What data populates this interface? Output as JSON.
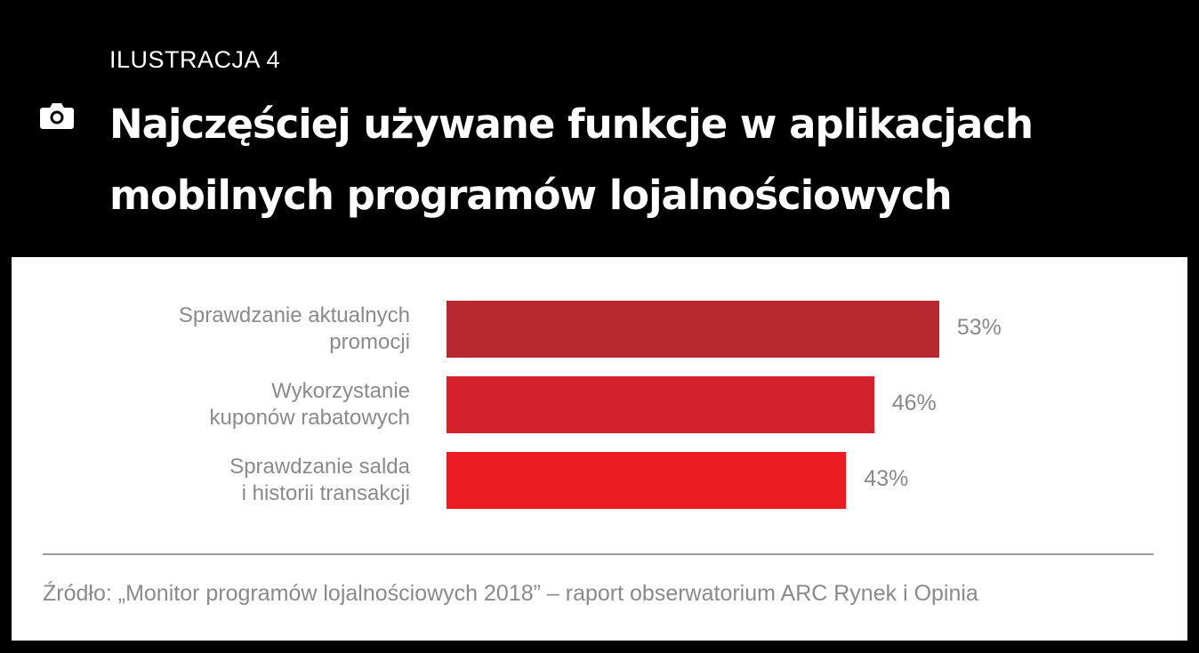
{
  "header": {
    "kicker": "ILUSTRACJA 4",
    "title": "Najczęściej używane funkcje w aplikacjach mobilnych programów lojalnościowych",
    "icon": "camera-icon"
  },
  "chart_data": {
    "type": "bar",
    "orientation": "horizontal",
    "categories": [
      "Sprawdzanie aktualnych promocji",
      "Wykorzystanie kuponów rabatowych",
      "Sprawdzanie salda i historii transakcji"
    ],
    "category_lines": [
      [
        "Sprawdzanie aktualnych",
        "promocji"
      ],
      [
        "Wykorzystanie",
        "kuponów rabatowych"
      ],
      [
        "Sprawdzanie salda",
        "i historii transakcji"
      ]
    ],
    "values": [
      53,
      46,
      43
    ],
    "value_labels": [
      "53%",
      "46%",
      "43%"
    ],
    "colors": [
      "#b72830",
      "#d3222b",
      "#ec1c24"
    ],
    "unit": "%",
    "grid": false
  },
  "source": "Źródło: „Monitor programów lojalnościowych 2018” – raport obserwatorium ARC Rynek i Opinia"
}
